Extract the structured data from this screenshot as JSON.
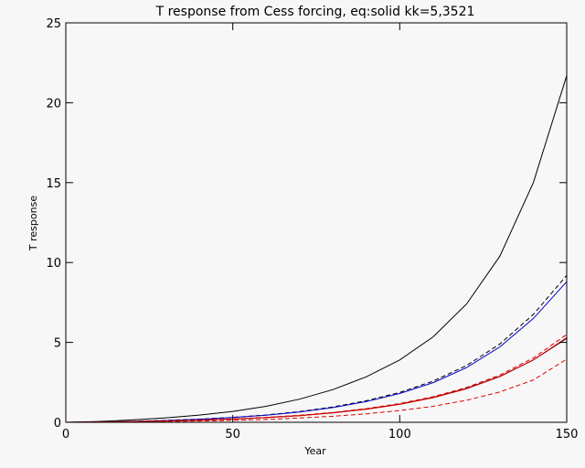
{
  "chart_data": {
    "type": "line",
    "title": "T response from Cess forcing, eq:solid kk=5,3521",
    "xlabel": "Year",
    "ylabel": "T response",
    "xlim": [
      0,
      150
    ],
    "ylim": [
      0,
      25
    ],
    "x_ticks": [
      "0",
      "50",
      "100",
      "150"
    ],
    "y_ticks": [
      "0",
      "5",
      "10",
      "15",
      "20",
      "25"
    ],
    "grid": false,
    "x": [
      0,
      10,
      20,
      30,
      40,
      50,
      60,
      70,
      80,
      90,
      100,
      110,
      120,
      130,
      140,
      150
    ],
    "series": [
      {
        "color": "#000000",
        "style": "solid",
        "values": [
          0.0,
          0.05,
          0.15,
          0.28,
          0.45,
          0.68,
          1.0,
          1.45,
          2.05,
          2.85,
          3.9,
          5.35,
          7.4,
          10.4,
          15.0,
          21.7
        ]
      },
      {
        "color": "#000000",
        "style": "dashed",
        "values": [
          0.0,
          0.02,
          0.06,
          0.12,
          0.2,
          0.31,
          0.46,
          0.67,
          0.96,
          1.35,
          1.87,
          2.58,
          3.55,
          4.9,
          6.75,
          9.2
        ]
      },
      {
        "color": "#0000cc",
        "style": "solid",
        "values": [
          0.0,
          0.02,
          0.06,
          0.11,
          0.19,
          0.3,
          0.44,
          0.64,
          0.92,
          1.3,
          1.8,
          2.48,
          3.42,
          4.72,
          6.5,
          8.8
        ]
      },
      {
        "color": "#000000",
        "style": "solid",
        "values": [
          0.0,
          0.01,
          0.04,
          0.08,
          0.13,
          0.2,
          0.29,
          0.42,
          0.6,
          0.83,
          1.14,
          1.56,
          2.12,
          2.88,
          3.9,
          5.25
        ]
      },
      {
        "color": "#dd0000",
        "style": "solid",
        "values": [
          0.0,
          0.01,
          0.04,
          0.08,
          0.13,
          0.2,
          0.29,
          0.42,
          0.59,
          0.82,
          1.12,
          1.54,
          2.1,
          2.86,
          3.9,
          5.3
        ]
      },
      {
        "color": "#dd0000",
        "style": "dashed",
        "values": [
          0.0,
          0.01,
          0.04,
          0.08,
          0.14,
          0.21,
          0.31,
          0.44,
          0.62,
          0.86,
          1.17,
          1.6,
          2.18,
          2.96,
          4.02,
          5.5
        ]
      },
      {
        "color": "#dd0000",
        "style": "dashed",
        "values": [
          0.0,
          0.01,
          0.03,
          0.05,
          0.08,
          0.12,
          0.18,
          0.27,
          0.38,
          0.53,
          0.73,
          1.0,
          1.38,
          1.9,
          2.65,
          3.95
        ]
      }
    ]
  }
}
